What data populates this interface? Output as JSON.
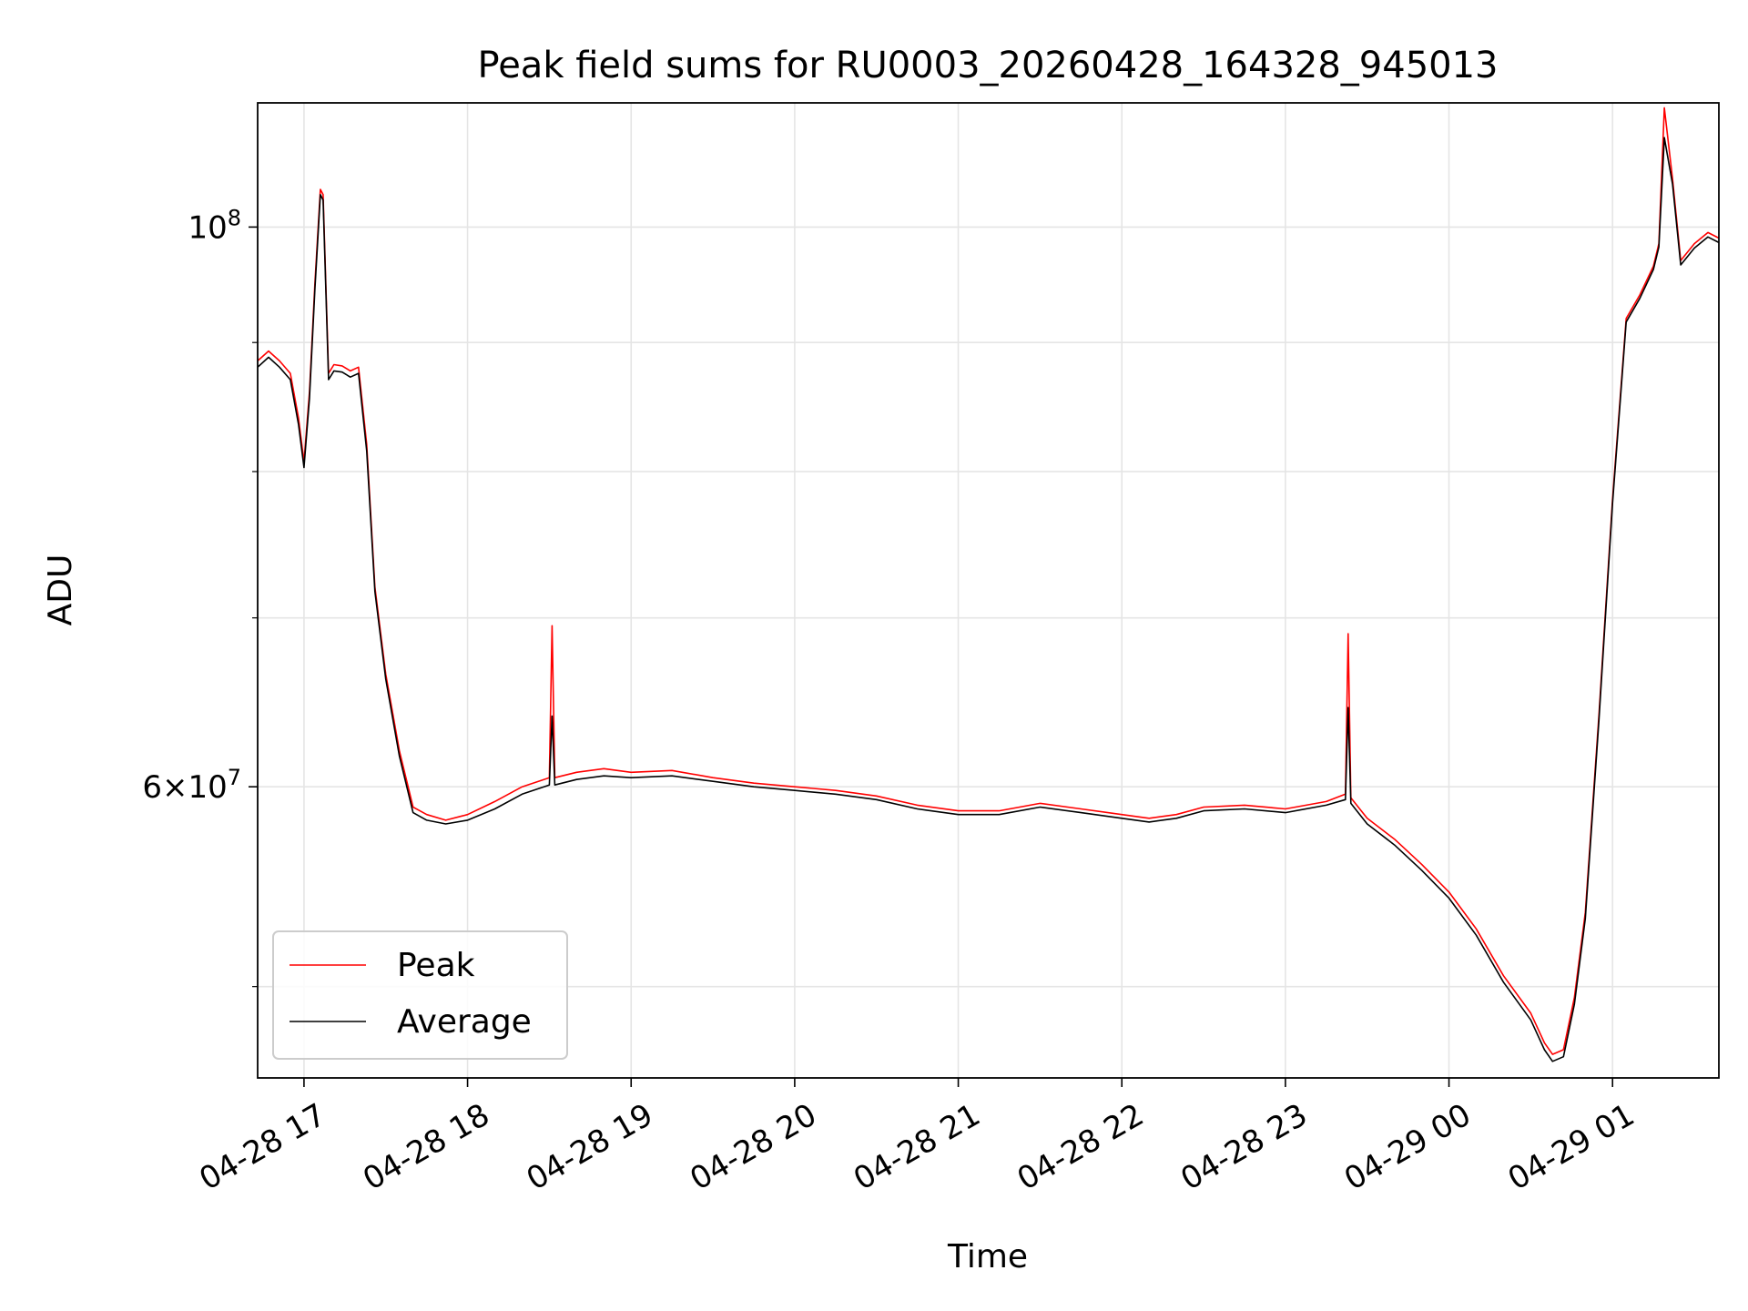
{
  "chart_data": {
    "type": "line",
    "title": "Peak field sums for RU0003_20260428_164328_945013",
    "xlabel": "Time",
    "ylabel": "ADU",
    "x_type": "datetime",
    "xlim": [
      "2026-04-28 16:43",
      "2026-04-29 01:39"
    ],
    "ylim": [
      46000000,
      112000000
    ],
    "yscale": "log",
    "grid": true,
    "legend_loc": "lower left",
    "x_ticks": [
      {
        "value": "2026-04-28 17:00",
        "label": "04-28 17"
      },
      {
        "value": "2026-04-28 18:00",
        "label": "04-28 18"
      },
      {
        "value": "2026-04-28 19:00",
        "label": "04-28 19"
      },
      {
        "value": "2026-04-28 20:00",
        "label": "04-28 20"
      },
      {
        "value": "2026-04-28 21:00",
        "label": "04-28 21"
      },
      {
        "value": "2026-04-28 22:00",
        "label": "04-28 22"
      },
      {
        "value": "2026-04-28 23:00",
        "label": "04-28 23"
      },
      {
        "value": "2026-04-29 00:00",
        "label": "04-29 00"
      },
      {
        "value": "2026-04-29 01:00",
        "label": "04-29 01"
      }
    ],
    "y_major_ticks": [
      {
        "value": 60000000,
        "mantissa": "6",
        "exponent": "7"
      },
      {
        "value": 100000000,
        "mantissa": "",
        "exponent": "8"
      }
    ],
    "y_minor_ticks": [
      50000000,
      70000000,
      80000000,
      90000000
    ],
    "series": [
      {
        "name": "Peak",
        "color": "#ff0000",
        "x": [
          "2026-04-28 16:43",
          "2026-04-28 16:47",
          "2026-04-28 16:51",
          "2026-04-28 16:55",
          "2026-04-28 16:58",
          "2026-04-28 17:00",
          "2026-04-28 17:02",
          "2026-04-28 17:04",
          "2026-04-28 17:06",
          "2026-04-28 17:07",
          "2026-04-28 17:09",
          "2026-04-28 17:11",
          "2026-04-28 17:14",
          "2026-04-28 17:17",
          "2026-04-28 17:20",
          "2026-04-28 17:23",
          "2026-04-28 17:26",
          "2026-04-28 17:30",
          "2026-04-28 17:35",
          "2026-04-28 17:40",
          "2026-04-28 17:45",
          "2026-04-28 17:52",
          "2026-04-28 18:00",
          "2026-04-28 18:10",
          "2026-04-28 18:20",
          "2026-04-28 18:30",
          "2026-04-28 18:31",
          "2026-04-28 18:32",
          "2026-04-28 18:40",
          "2026-04-28 18:50",
          "2026-04-28 19:00",
          "2026-04-28 19:15",
          "2026-04-28 19:30",
          "2026-04-28 19:45",
          "2026-04-28 20:00",
          "2026-04-28 20:15",
          "2026-04-28 20:30",
          "2026-04-28 20:45",
          "2026-04-28 21:00",
          "2026-04-28 21:15",
          "2026-04-28 21:30",
          "2026-04-28 21:45",
          "2026-04-28 22:00",
          "2026-04-28 22:10",
          "2026-04-28 22:20",
          "2026-04-28 22:30",
          "2026-04-28 22:45",
          "2026-04-28 23:00",
          "2026-04-28 23:15",
          "2026-04-28 23:22",
          "2026-04-28 23:23",
          "2026-04-28 23:24",
          "2026-04-28 23:30",
          "2026-04-28 23:40",
          "2026-04-28 23:50",
          "2026-04-29 00:00",
          "2026-04-29 00:10",
          "2026-04-29 00:20",
          "2026-04-29 00:30",
          "2026-04-29 00:35",
          "2026-04-29 00:38",
          "2026-04-29 00:42",
          "2026-04-29 00:46",
          "2026-04-29 00:50",
          "2026-04-29 00:55",
          "2026-04-29 01:00",
          "2026-04-29 01:05",
          "2026-04-29 01:10",
          "2026-04-29 01:15",
          "2026-04-29 01:17",
          "2026-04-29 01:19",
          "2026-04-29 01:22",
          "2026-04-29 01:25",
          "2026-04-29 01:30",
          "2026-04-29 01:35",
          "2026-04-29 01:39"
        ],
        "values": [
          88500000,
          89300000,
          88500000,
          87500000,
          84000000,
          80700000,
          86000000,
          95000000,
          103500000,
          103000000,
          87500000,
          88200000,
          88100000,
          87700000,
          88000000,
          82000000,
          72000000,
          66500000,
          62000000,
          58900000,
          58500000,
          58200000,
          58500000,
          59200000,
          60000000,
          60500000,
          69500000,
          60500000,
          60800000,
          61000000,
          60800000,
          60900000,
          60500000,
          60200000,
          60000000,
          59800000,
          59500000,
          59000000,
          58700000,
          58700000,
          59100000,
          58800000,
          58500000,
          58300000,
          58500000,
          58900000,
          59000000,
          58800000,
          59200000,
          59600000,
          69000000,
          59400000,
          58300000,
          57200000,
          55900000,
          54500000,
          52700000,
          50500000,
          48800000,
          47500000,
          47000000,
          47200000,
          49500000,
          53500000,
          64000000,
          78000000,
          92000000,
          94000000,
          96500000,
          98500000,
          111500000,
          104500000,
          97000000,
          98500000,
          99500000,
          99000000
        ]
      },
      {
        "name": "Average",
        "color": "#000000",
        "x": [
          "2026-04-28 16:43",
          "2026-04-28 16:47",
          "2026-04-28 16:51",
          "2026-04-28 16:55",
          "2026-04-28 16:58",
          "2026-04-28 17:00",
          "2026-04-28 17:02",
          "2026-04-28 17:04",
          "2026-04-28 17:06",
          "2026-04-28 17:07",
          "2026-04-28 17:09",
          "2026-04-28 17:11",
          "2026-04-28 17:14",
          "2026-04-28 17:17",
          "2026-04-28 17:20",
          "2026-04-28 17:23",
          "2026-04-28 17:26",
          "2026-04-28 17:30",
          "2026-04-28 17:35",
          "2026-04-28 17:40",
          "2026-04-28 17:45",
          "2026-04-28 17:52",
          "2026-04-28 18:00",
          "2026-04-28 18:10",
          "2026-04-28 18:20",
          "2026-04-28 18:30",
          "2026-04-28 18:31",
          "2026-04-28 18:32",
          "2026-04-28 18:40",
          "2026-04-28 18:50",
          "2026-04-28 19:00",
          "2026-04-28 19:15",
          "2026-04-28 19:30",
          "2026-04-28 19:45",
          "2026-04-28 20:00",
          "2026-04-28 20:15",
          "2026-04-28 20:30",
          "2026-04-28 20:45",
          "2026-04-28 21:00",
          "2026-04-28 21:15",
          "2026-04-28 21:30",
          "2026-04-28 21:45",
          "2026-04-28 22:00",
          "2026-04-28 22:10",
          "2026-04-28 22:20",
          "2026-04-28 22:30",
          "2026-04-28 22:45",
          "2026-04-28 23:00",
          "2026-04-28 23:15",
          "2026-04-28 23:22",
          "2026-04-28 23:23",
          "2026-04-28 23:24",
          "2026-04-28 23:30",
          "2026-04-28 23:40",
          "2026-04-28 23:50",
          "2026-04-29 00:00",
          "2026-04-29 00:10",
          "2026-04-29 00:20",
          "2026-04-29 00:30",
          "2026-04-29 00:35",
          "2026-04-29 00:38",
          "2026-04-29 00:42",
          "2026-04-29 00:46",
          "2026-04-29 00:50",
          "2026-04-29 00:55",
          "2026-04-29 01:00",
          "2026-04-29 01:05",
          "2026-04-29 01:10",
          "2026-04-29 01:15",
          "2026-04-29 01:17",
          "2026-04-29 01:19",
          "2026-04-29 01:22",
          "2026-04-29 01:25",
          "2026-04-29 01:30",
          "2026-04-29 01:35",
          "2026-04-29 01:39"
        ],
        "values": [
          88000000,
          88800000,
          88000000,
          87000000,
          83500000,
          80300000,
          85500000,
          94500000,
          103000000,
          102500000,
          87000000,
          87700000,
          87600000,
          87200000,
          87500000,
          81500000,
          71700000,
          66200000,
          61700000,
          58600000,
          58200000,
          58000000,
          58200000,
          58800000,
          59600000,
          60100000,
          64000000,
          60100000,
          60400000,
          60600000,
          60500000,
          60600000,
          60300000,
          60000000,
          59800000,
          59600000,
          59300000,
          58800000,
          58500000,
          58500000,
          58900000,
          58600000,
          58300000,
          58100000,
          58300000,
          58700000,
          58800000,
          58600000,
          59000000,
          59300000,
          64500000,
          59100000,
          58000000,
          56900000,
          55600000,
          54200000,
          52400000,
          50200000,
          48500000,
          47200000,
          46700000,
          46900000,
          49200000,
          53200000,
          63700000,
          77700000,
          91700000,
          93700000,
          96200000,
          98200000,
          108500000,
          104000000,
          96600000,
          98100000,
          99100000,
          98600000
        ]
      }
    ]
  }
}
